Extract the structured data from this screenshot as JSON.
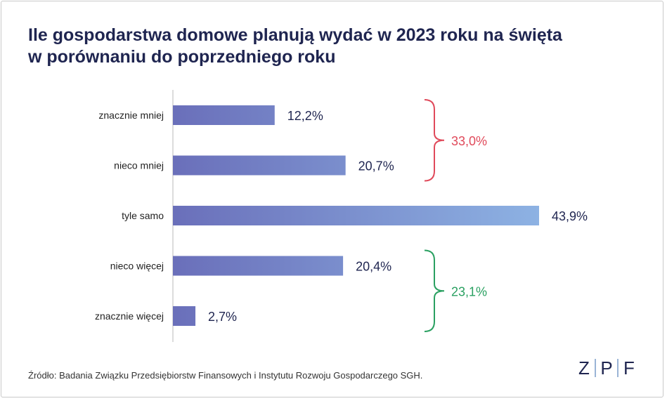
{
  "title_lines": [
    "Ile gospodarstwa domowe planują wydać w 2023 roku na święta",
    "w porównaniu do poprzedniego roku"
  ],
  "source": "Źródło: Badania Związku Przedsiębiorstw Finansowych i Instytutu Rozwoju Gospodarczego SGH.",
  "logo_letters": [
    "Z",
    "P",
    "F"
  ],
  "colors": {
    "title": "#1f2550",
    "bar_start": "#6a6fba",
    "bar_end": "#8db2e3",
    "less_group": "#e0495a",
    "more_group": "#2aa061"
  },
  "chart_data": {
    "type": "bar",
    "orientation": "horizontal",
    "categories": [
      "znacznie mniej",
      "nieco mniej",
      "tyle samo",
      "nieco więcej",
      "znacznie więcej"
    ],
    "values": [
      12.2,
      20.7,
      43.9,
      20.4,
      2.7
    ],
    "value_labels": [
      "12,2%",
      "20,7%",
      "43,9%",
      "20,4%",
      "2,7%"
    ],
    "groups": [
      {
        "label": "33,0%",
        "value": 33.0,
        "from": 0,
        "to": 1,
        "color": "#e0495a"
      },
      {
        "label": "23,1%",
        "value": 23.1,
        "from": 3,
        "to": 4,
        "color": "#2aa061"
      }
    ],
    "xlim": [
      0,
      43.9
    ],
    "grid": false
  }
}
